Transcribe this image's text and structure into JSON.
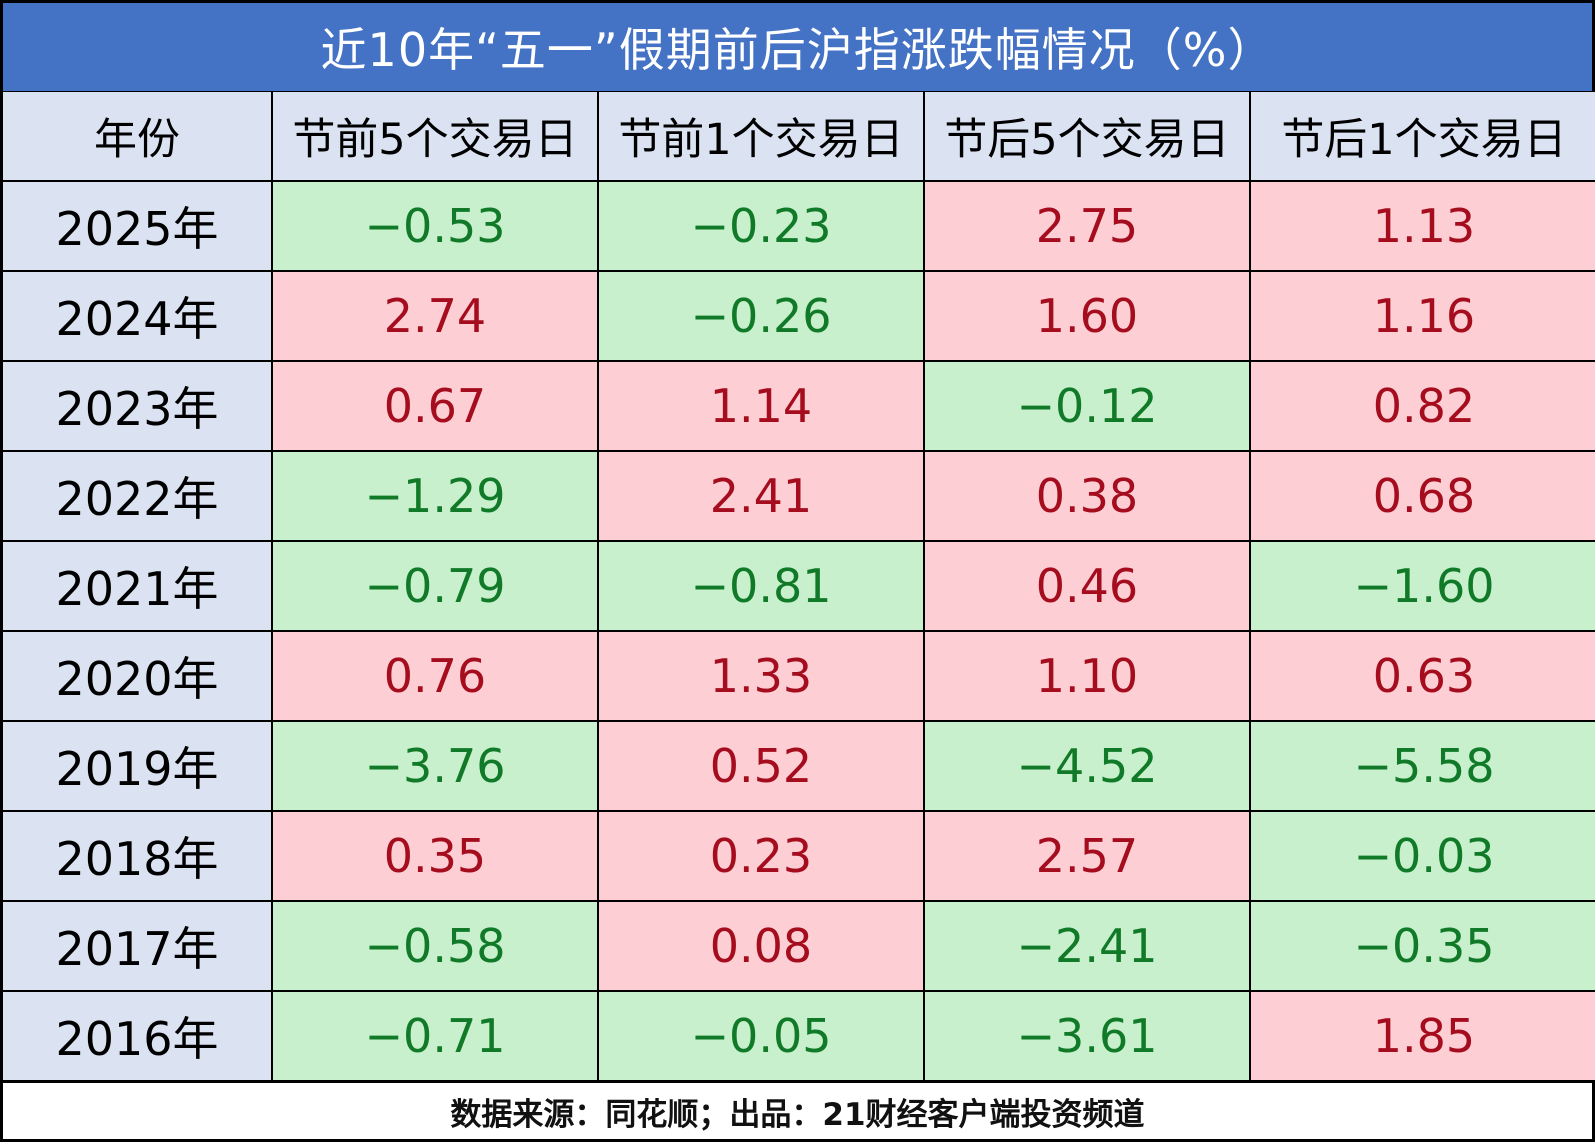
{
  "title": "近10年“五一”假期前后沪指涨跌幅情况（%）",
  "footer": "数据来源：同花顺；出品：21财经客户端投资频道",
  "colors": {
    "header_bar": "#4472c4",
    "year_cell": "#dbe3f3",
    "positive_bg": "#fdcfd4",
    "positive_text": "#a50d1f",
    "negative_bg": "#c8f0cd",
    "negative_text": "#117a28"
  },
  "chart_data": {
    "type": "table",
    "columns": [
      "年份",
      "节前5个交易日",
      "节前1个交易日",
      "节后5个交易日",
      "节后1个交易日"
    ],
    "rows": [
      {
        "year": "2025年",
        "values": [
          "−0.53",
          "−0.23",
          "2.75",
          "1.13"
        ]
      },
      {
        "year": "2024年",
        "values": [
          "2.74",
          "−0.26",
          "1.60",
          "1.16"
        ]
      },
      {
        "year": "2023年",
        "values": [
          "0.67",
          "1.14",
          "−0.12",
          "0.82"
        ]
      },
      {
        "year": "2022年",
        "values": [
          "−1.29",
          "2.41",
          "0.38",
          "0.68"
        ]
      },
      {
        "year": "2021年",
        "values": [
          "−0.79",
          "−0.81",
          "0.46",
          "−1.60"
        ]
      },
      {
        "year": "2020年",
        "values": [
          "0.76",
          "1.33",
          "1.10",
          "0.63"
        ]
      },
      {
        "year": "2019年",
        "values": [
          "−3.76",
          "0.52",
          "−4.52",
          "−5.58"
        ]
      },
      {
        "year": "2018年",
        "values": [
          "0.35",
          "0.23",
          "2.57",
          "−0.03"
        ]
      },
      {
        "year": "2017年",
        "values": [
          "−0.58",
          "0.08",
          "−2.41",
          "−0.35"
        ]
      },
      {
        "year": "2016年",
        "values": [
          "−0.71",
          "−0.05",
          "−3.61",
          "1.85"
        ]
      }
    ]
  }
}
